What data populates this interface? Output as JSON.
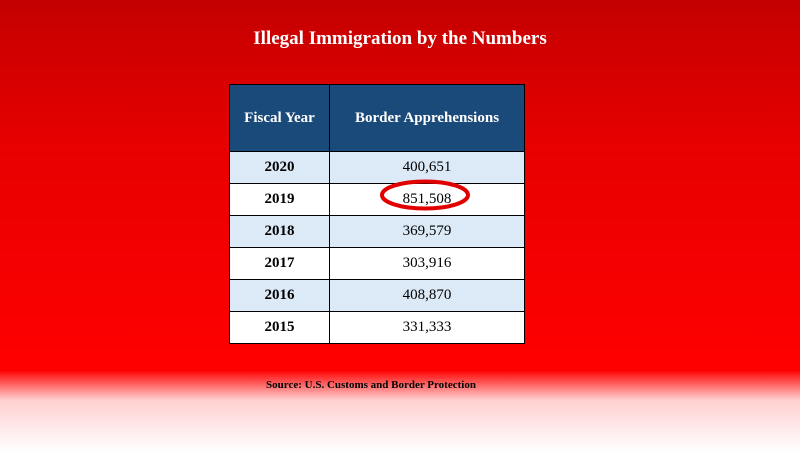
{
  "title": "Illegal Immigration by the Numbers",
  "table": {
    "header": [
      "Fiscal Year",
      "Border Apprehensions"
    ],
    "rows": [
      [
        "2020",
        "400,651"
      ],
      [
        "2019",
        "851,508"
      ],
      [
        "2018",
        "369,579"
      ],
      [
        "2017",
        "303,916"
      ],
      [
        "2016",
        "408,870"
      ],
      [
        "2015",
        "331,333"
      ]
    ]
  },
  "source": "Source: U.S. Customs and Border Protection"
}
